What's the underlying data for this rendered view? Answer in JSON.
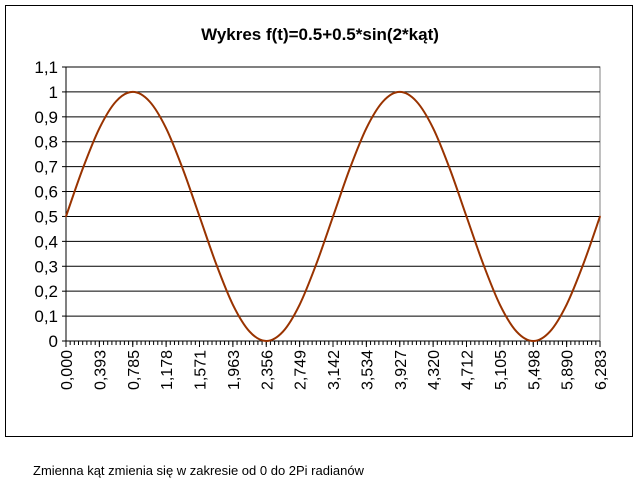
{
  "chart_data": {
    "type": "line",
    "title": "Wykres f(t)=0.5+0.5*sin(2*kąt)",
    "xlabel": "",
    "ylabel": "",
    "x_tick_labels": [
      "0,000",
      "0,393",
      "0,785",
      "1,178",
      "1,571",
      "1,963",
      "2,356",
      "2,749",
      "3,142",
      "3,534",
      "3,927",
      "4,320",
      "4,712",
      "5,105",
      "5,498",
      "5,890",
      "6,283"
    ],
    "y_tick_labels": [
      "0",
      "0,1",
      "0,2",
      "0,3",
      "0,4",
      "0,5",
      "0,6",
      "0,7",
      "0,8",
      "0,9",
      "1",
      "1,1"
    ],
    "xlim": [
      0,
      6.283
    ],
    "ylim": [
      0,
      1.1
    ],
    "grid": "horizontal",
    "legend": "none",
    "series": [
      {
        "color": "#993300",
        "x": [
          0,
          0.196,
          0.393,
          0.589,
          0.785,
          0.982,
          1.178,
          1.374,
          1.571,
          1.767,
          1.963,
          2.16,
          2.356,
          2.553,
          2.749,
          2.945,
          3.142,
          3.338,
          3.534,
          3.731,
          3.927,
          4.123,
          4.32,
          4.516,
          4.712,
          4.909,
          5.105,
          5.301,
          5.498,
          5.694,
          5.89,
          6.087,
          6.283
        ],
        "values": [
          0.5,
          0.691,
          0.854,
          0.962,
          1.0,
          0.962,
          0.854,
          0.691,
          0.5,
          0.309,
          0.146,
          0.038,
          0.0,
          0.038,
          0.146,
          0.309,
          0.5,
          0.691,
          0.854,
          0.962,
          1.0,
          0.962,
          0.854,
          0.691,
          0.5,
          0.309,
          0.146,
          0.038,
          0.0,
          0.038,
          0.146,
          0.309,
          0.5
        ]
      }
    ]
  },
  "colors": {
    "plot_background": "#ffffff",
    "grid": "#000000",
    "line": "#993300"
  },
  "caption": "Zmienna kąt zmienia się w zakresie od 0 do 2Pi radianów"
}
